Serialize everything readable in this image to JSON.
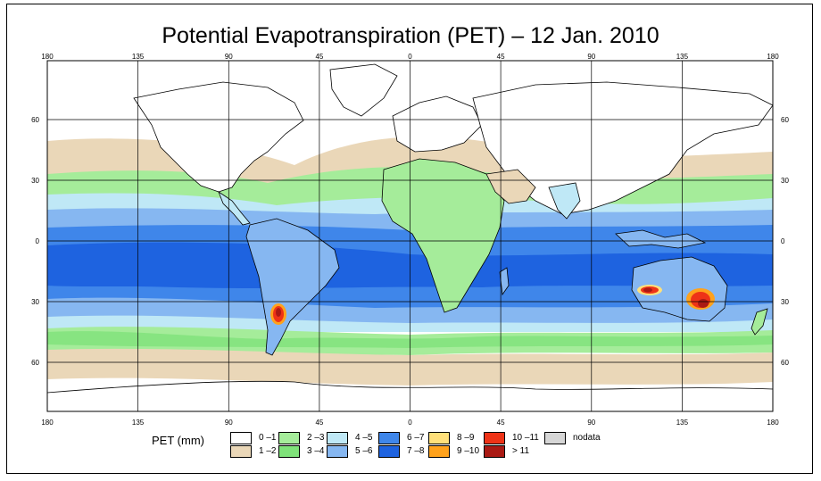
{
  "title": "Potential Evapotranspiration (PET) – 12 Jan. 2010",
  "axes": {
    "lon_ticks": [
      "180",
      "135",
      "90",
      "45",
      "0",
      "45",
      "90",
      "135",
      "180"
    ],
    "lat_ticks": [
      "60",
      "30",
      "0",
      "30",
      "60"
    ]
  },
  "legend": {
    "title": "PET (mm)",
    "items": [
      {
        "label": "0 –1",
        "color": "#ffffff"
      },
      {
        "label": "1 –2",
        "color": "#ead7b8"
      },
      {
        "label": "2 –3",
        "color": "#a5ec9a"
      },
      {
        "label": "3 –4",
        "color": "#7fe27a"
      },
      {
        "label": "4 –5",
        "color": "#bfe8f6"
      },
      {
        "label": "5 –6",
        "color": "#86b7f1"
      },
      {
        "label": "6 –7",
        "color": "#3f86ea"
      },
      {
        "label": "7 –8",
        "color": "#1e63e0"
      },
      {
        "label": "8 –9",
        "color": "#ffe07a"
      },
      {
        "label": "9 –10",
        "color": "#ffa21c"
      },
      {
        "label": "10 –11",
        "color": "#ee3317"
      },
      {
        "label": "> 11",
        "color": "#aa1a14"
      },
      {
        "label": "nodata",
        "color": "#d6d6d6"
      }
    ]
  }
}
